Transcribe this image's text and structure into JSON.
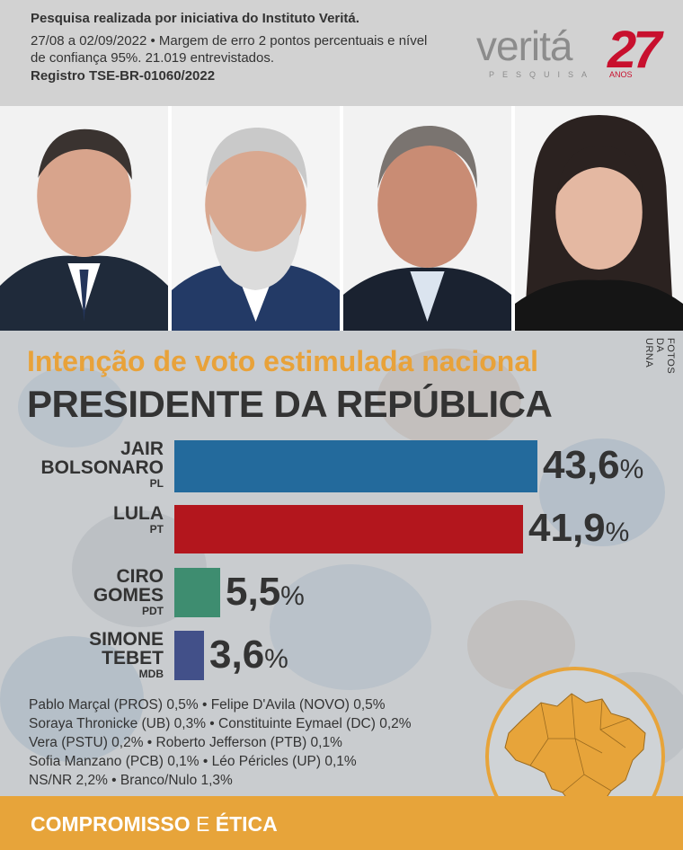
{
  "header": {
    "line1": "Pesquisa realizada por iniciativa do Instituto Veritá.",
    "line2": "27/08 a 02/09/2022 • Margem de erro 2 pontos percentuais e nível de confiança 95%. 21.019 entrevistados.",
    "line3": "Registro TSE-BR-01060/2022"
  },
  "logo": {
    "brand": "veritá",
    "sub": "PESQUISA",
    "number": "27",
    "anos": "ANOS"
  },
  "photo_credit": "FOTOS DA URNA",
  "chart_data": {
    "type": "bar",
    "subtitle": "Intenção de voto estimulada nacional",
    "title": "PRESIDENTE DA REPÚBLICA",
    "categories": [
      "JAIR BOLSONARO",
      "LULA",
      "CIRO GOMES",
      "SIMONE TEBET"
    ],
    "name_lines": [
      [
        "JAIR",
        "BOLSONARO"
      ],
      [
        "LULA"
      ],
      [
        "CIRO",
        "GOMES"
      ],
      [
        "SIMONE",
        "TEBET"
      ]
    ],
    "parties": [
      "PL",
      "PT",
      "PDT",
      "MDB"
    ],
    "values": [
      43.6,
      41.9,
      5.5,
      3.6
    ],
    "value_labels": [
      "43,6",
      "41,9",
      "5,5",
      "3,6"
    ],
    "unit": "%",
    "colors": [
      "#236a9c",
      "#b3161d",
      "#3e8d70",
      "#425089"
    ]
  },
  "others": {
    "lines": [
      "Pablo Marçal (PROS) 0,5% • Felipe D'Avila (NOVO) 0,5%",
      "Soraya Thronicke (UB) 0,3% • Constituinte Eymael (DC) 0,2%",
      "Vera (PSTU) 0,2% • Roberto Jefferson (PTB) 0,1%",
      "Sofia Manzano (PCB) 0,1% • Léo Péricles (UP) 0,1%",
      "NS/NR 2,2% • Branco/Nulo 1,3%"
    ]
  },
  "footer": {
    "word1": "COMPROMISSO",
    "word2": "E",
    "word3": "ÉTICA"
  },
  "colors": {
    "accent": "#e8a23a",
    "footer": "#e7a43a",
    "logo_red": "#c8102e",
    "text": "#333333"
  }
}
